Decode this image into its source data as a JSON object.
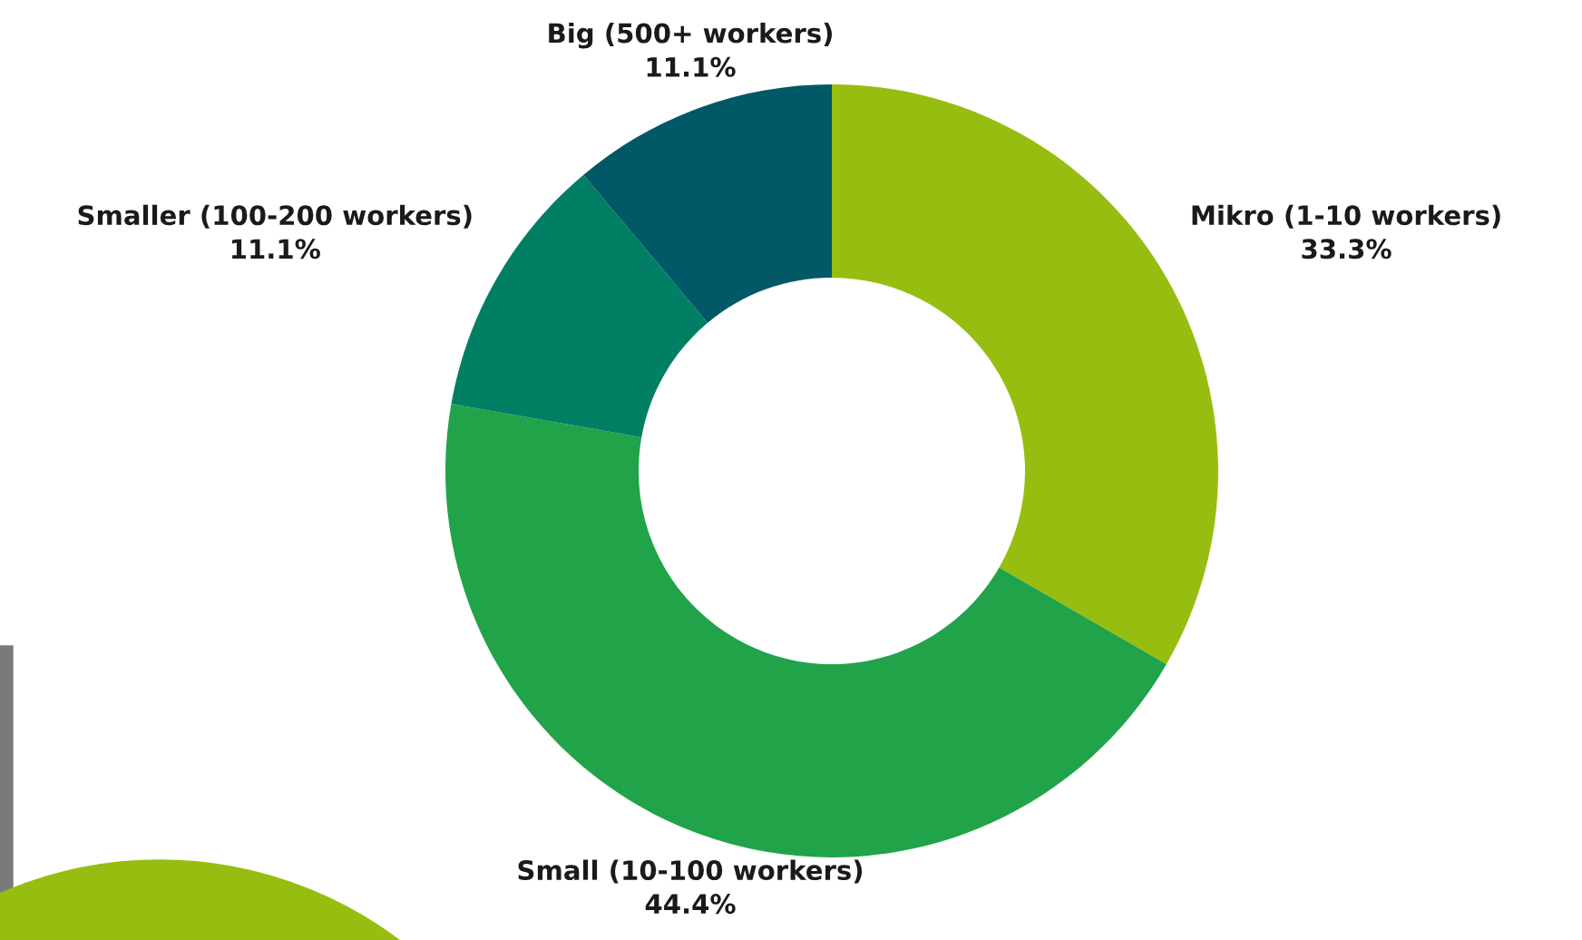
{
  "chart_data": {
    "type": "donut",
    "categories": [
      "Mikro (1-10 workers)",
      "Small (10-100 workers)",
      "Smaller (100-200 workers)",
      "Big (500+ workers)"
    ],
    "values": [
      33.3,
      44.4,
      11.1,
      11.1
    ],
    "value_labels": [
      "33.3%",
      "44.4%",
      "11.1%",
      "11.1%"
    ],
    "colors": [
      "#97bd10",
      "#21a34a",
      "#007f64",
      "#015866"
    ],
    "legend": false
  }
}
